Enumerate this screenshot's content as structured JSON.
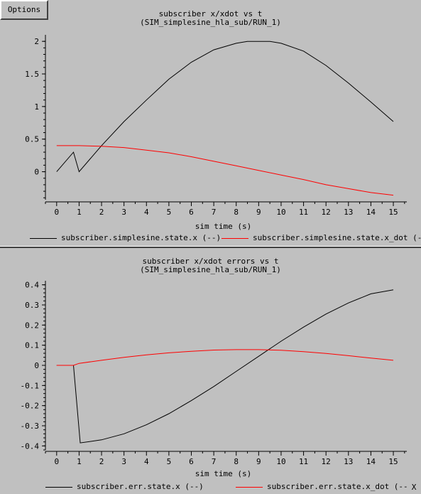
{
  "menu": {
    "options_label": "Options",
    "close_label": "X"
  },
  "chart_data": [
    {
      "type": "line",
      "title": "subscriber x/xdot vs t",
      "subtitle": "(SIM_simplesine_hla_sub/RUN_1)",
      "xlabel": "sim time (s)",
      "ylabel": "",
      "xlim": [
        -0.5,
        15.6
      ],
      "ylim": [
        -0.43,
        2.1
      ],
      "xticks": [
        0,
        1,
        2,
        3,
        4,
        5,
        6,
        7,
        8,
        9,
        10,
        11,
        12,
        13,
        14,
        15
      ],
      "xtick_labels": [
        "0",
        "1",
        "2",
        "3",
        "4",
        "5",
        "6",
        "7",
        "8",
        "9",
        "10",
        "11",
        "12",
        "13",
        "14",
        "15"
      ],
      "yticks": [
        0,
        0.5,
        1,
        1.5,
        2
      ],
      "ytick_labels": [
        "0",
        "0.5",
        "1",
        "1.5",
        "2"
      ],
      "legend_position": "bottom",
      "series": [
        {
          "name": "subscriber.simplesine.state.x (--)",
          "color": "#000000",
          "x": [
            0,
            0.75,
            1.0,
            2,
            3,
            4,
            5,
            6,
            7,
            8,
            8.5,
            9,
            9.5,
            10,
            11,
            12,
            13,
            14,
            15
          ],
          "y": [
            0,
            0.3,
            0,
            0.4,
            0.77,
            1.1,
            1.42,
            1.68,
            1.87,
            1.97,
            2.0,
            2.0,
            2.0,
            1.97,
            1.85,
            1.63,
            1.36,
            1.07,
            0.77
          ]
        },
        {
          "name": "subscriber.simplesine.state.x_dot (--)",
          "color": "#ff0000",
          "x": [
            0,
            1,
            2,
            3,
            4,
            5,
            6,
            7,
            8,
            9,
            10,
            11,
            12,
            13,
            14,
            15
          ],
          "y": [
            0.4,
            0.4,
            0.39,
            0.37,
            0.33,
            0.29,
            0.23,
            0.16,
            0.09,
            0.02,
            -0.05,
            -0.12,
            -0.2,
            -0.26,
            -0.32,
            -0.36
          ]
        }
      ]
    },
    {
      "type": "line",
      "title": "subscriber x/xdot errors vs t",
      "subtitle": "(SIM_simplesine_hla_sub/RUN_1)",
      "xlabel": "sim time (s)",
      "ylabel": "",
      "xlim": [
        -0.5,
        15.6
      ],
      "ylim": [
        -0.42,
        0.42
      ],
      "xticks": [
        0,
        1,
        2,
        3,
        4,
        5,
        6,
        7,
        8,
        9,
        10,
        11,
        12,
        13,
        14,
        15
      ],
      "xtick_labels": [
        "0",
        "1",
        "2",
        "3",
        "4",
        "5",
        "6",
        "7",
        "8",
        "9",
        "10",
        "11",
        "12",
        "13",
        "14",
        "15"
      ],
      "yticks": [
        0.4,
        0.3,
        0.2,
        0.1,
        0,
        -0.1,
        -0.2,
        -0.3,
        -0.4
      ],
      "ytick_labels": [
        "0.4",
        "0.3",
        "0.2",
        "0.1",
        "0",
        "-0.1",
        "-0.2",
        "-0.3",
        "-0.4"
      ],
      "legend_position": "bottom",
      "series": [
        {
          "name": "subscriber.err.state.x (--)",
          "color": "#000000",
          "x": [
            0,
            0.75,
            1.05,
            2,
            3,
            4,
            5,
            6,
            7,
            8,
            9,
            10,
            11,
            12,
            13,
            14,
            15
          ],
          "y": [
            0,
            0,
            -0.385,
            -0.37,
            -0.34,
            -0.295,
            -0.24,
            -0.175,
            -0.105,
            -0.03,
            0.045,
            0.12,
            0.19,
            0.255,
            0.31,
            0.355,
            0.375
          ]
        },
        {
          "name": "subscriber.err.state.x_dot (--)",
          "color": "#ff0000",
          "x": [
            0,
            0.75,
            1,
            2,
            3,
            4,
            5,
            6,
            7,
            8,
            9,
            10,
            11,
            12,
            13,
            14,
            15
          ],
          "y": [
            0,
            0,
            0.01,
            0.025,
            0.04,
            0.052,
            0.062,
            0.07,
            0.076,
            0.078,
            0.078,
            0.075,
            0.068,
            0.059,
            0.048,
            0.036,
            0.025
          ]
        }
      ]
    }
  ]
}
